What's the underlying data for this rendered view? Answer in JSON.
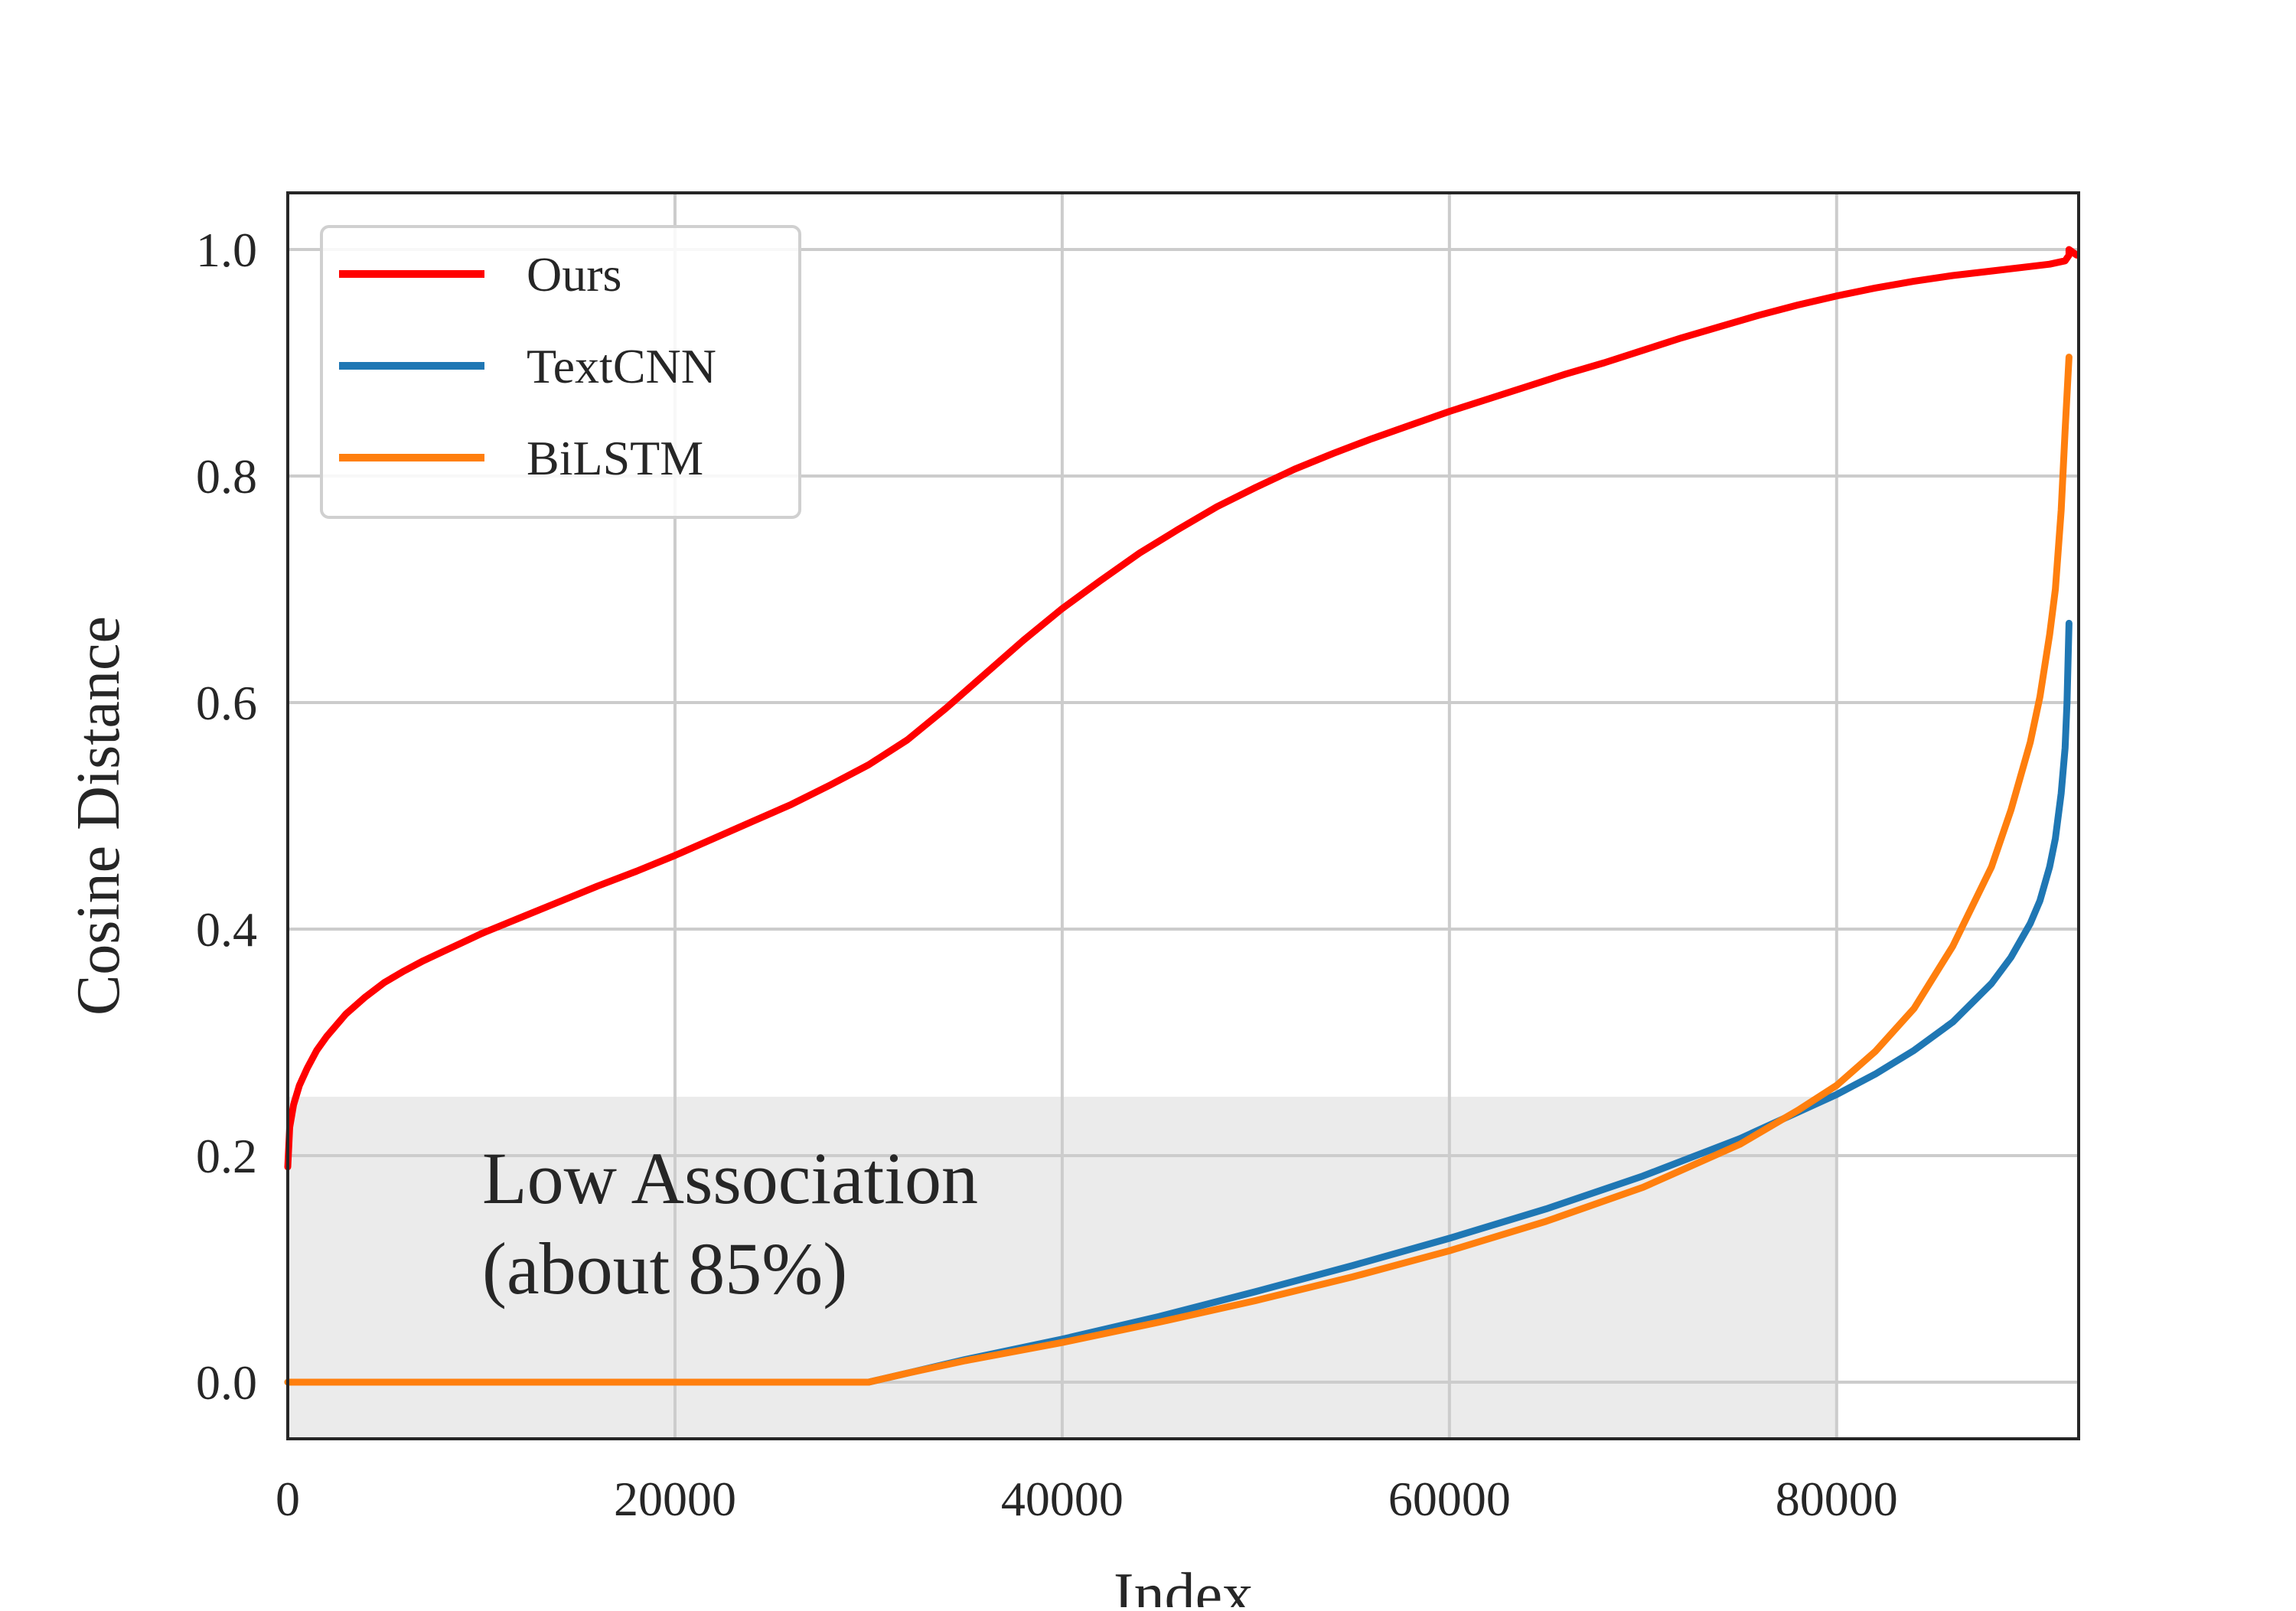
{
  "chart_data": {
    "type": "line",
    "title": "",
    "xlabel": "Index",
    "ylabel": "Cosine Distance",
    "xlim": [
      0,
      92500
    ],
    "ylim": [
      -0.05,
      1.05
    ],
    "xticks": [
      0,
      20000,
      40000,
      60000,
      80000
    ],
    "xtick_labels": [
      "0",
      "20000",
      "40000",
      "60000",
      "80000"
    ],
    "yticks": [
      0.0,
      0.2,
      0.4,
      0.6,
      0.8,
      1.0
    ],
    "ytick_labels": [
      "0.0",
      "0.2",
      "0.4",
      "0.6",
      "0.8",
      "1.0"
    ],
    "grid": true,
    "legend_position": "upper-left",
    "shaded_region": {
      "x_range": [
        0,
        80000
      ],
      "y_range": [
        -0.05,
        0.252
      ],
      "color": "#ebebeb",
      "annotation_lines": [
        "Low Association",
        "(about 85%)"
      ]
    },
    "series": [
      {
        "name": "Ours",
        "color": "#ff0000",
        "x": [
          0,
          100,
          300,
          600,
          1000,
          1500,
          2000,
          3000,
          4000,
          5000,
          6000,
          7000,
          8000,
          9000,
          10000,
          12000,
          14000,
          16000,
          18000,
          20000,
          22000,
          24000,
          26000,
          28000,
          30000,
          32000,
          34000,
          36000,
          38000,
          40000,
          42000,
          44000,
          46000,
          48000,
          50000,
          52000,
          54000,
          56000,
          58000,
          60000,
          62000,
          64000,
          66000,
          68000,
          70000,
          72000,
          74000,
          76000,
          78000,
          80000,
          82000,
          84000,
          86000,
          88000,
          90000,
          91000,
          91800,
          92000,
          92000,
          92400
        ],
        "values": [
          0.19,
          0.225,
          0.245,
          0.262,
          0.277,
          0.293,
          0.305,
          0.325,
          0.34,
          0.353,
          0.363,
          0.372,
          0.38,
          0.388,
          0.396,
          0.41,
          0.424,
          0.438,
          0.451,
          0.465,
          0.48,
          0.495,
          0.51,
          0.527,
          0.545,
          0.567,
          0.595,
          0.625,
          0.655,
          0.683,
          0.708,
          0.732,
          0.753,
          0.773,
          0.79,
          0.806,
          0.82,
          0.833,
          0.845,
          0.857,
          0.868,
          0.879,
          0.89,
          0.9,
          0.911,
          0.922,
          0.932,
          0.942,
          0.951,
          0.959,
          0.966,
          0.972,
          0.977,
          0.981,
          0.985,
          0.987,
          0.99,
          0.995,
          1.0,
          0.995
        ]
      },
      {
        "name": "TextCNN",
        "color": "#1f77b4",
        "x": [
          0,
          30000,
          32000,
          35000,
          40000,
          45000,
          50000,
          55000,
          60000,
          65000,
          70000,
          75000,
          80000,
          82000,
          84000,
          86000,
          88000,
          89000,
          90000,
          90500,
          91000,
          91300,
          91600,
          91800,
          91900,
          92000
        ],
        "values": [
          0.0,
          0.0,
          0.008,
          0.02,
          0.038,
          0.058,
          0.08,
          0.103,
          0.127,
          0.153,
          0.182,
          0.215,
          0.254,
          0.272,
          0.293,
          0.318,
          0.352,
          0.375,
          0.405,
          0.425,
          0.455,
          0.48,
          0.52,
          0.56,
          0.6,
          0.67
        ]
      },
      {
        "name": "BiLSTM",
        "color": "#ff7f0e",
        "x": [
          0,
          30000,
          32000,
          35000,
          40000,
          45000,
          50000,
          55000,
          60000,
          65000,
          70000,
          75000,
          78000,
          80000,
          82000,
          84000,
          86000,
          88000,
          89000,
          90000,
          90500,
          91000,
          91300,
          91600,
          91800,
          92000
        ],
        "values": [
          0.0,
          0.0,
          0.008,
          0.019,
          0.035,
          0.053,
          0.072,
          0.093,
          0.116,
          0.142,
          0.172,
          0.21,
          0.24,
          0.262,
          0.292,
          0.33,
          0.385,
          0.455,
          0.505,
          0.565,
          0.605,
          0.66,
          0.7,
          0.77,
          0.84,
          0.905
        ]
      }
    ]
  }
}
